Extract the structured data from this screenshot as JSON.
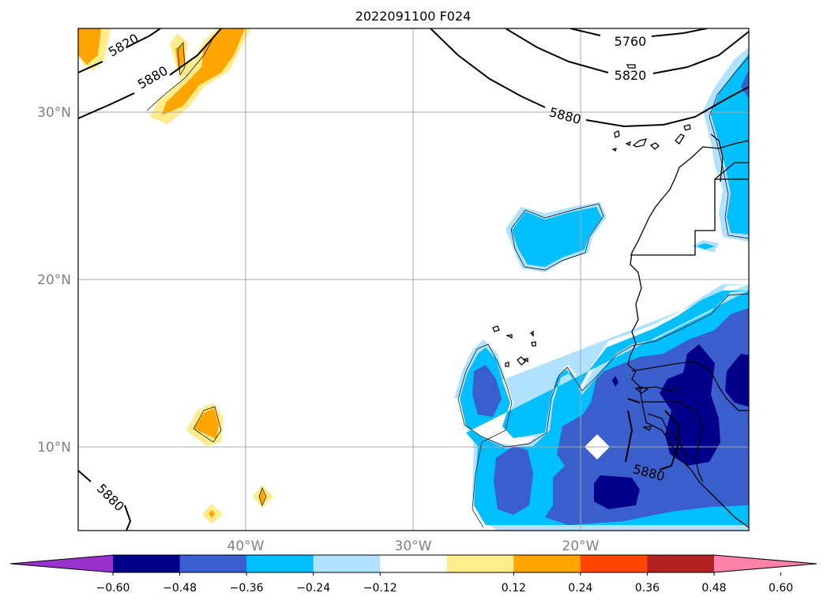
{
  "title": "2022091100 F024",
  "map": {
    "lon_range": [
      -50,
      -10
    ],
    "lat_range": [
      5,
      35
    ],
    "gridlines": true
  },
  "lat_labels": [
    "30°N",
    "20°N",
    "10°N"
  ],
  "lon_labels": [
    "40°W",
    "30°W",
    "20°W"
  ],
  "contour_labels": [
    "5820",
    "5880",
    "5760",
    "5820",
    "5880",
    "5880",
    "5880"
  ],
  "colorbar": {
    "ticks": [
      "−0.60",
      "−0.48",
      "−0.36",
      "−0.24",
      "−0.12",
      "0.12",
      "0.24",
      "0.36",
      "0.48",
      "0.60"
    ],
    "colors": [
      "#9932cc",
      "#00008b",
      "#3a5fcd",
      "#00bfff",
      "#b0e2ff",
      "#ffffff",
      "#ffec8b",
      "#ffa500",
      "#ff4500",
      "#b22222",
      "#ff82ab"
    ],
    "extend": "both"
  }
}
